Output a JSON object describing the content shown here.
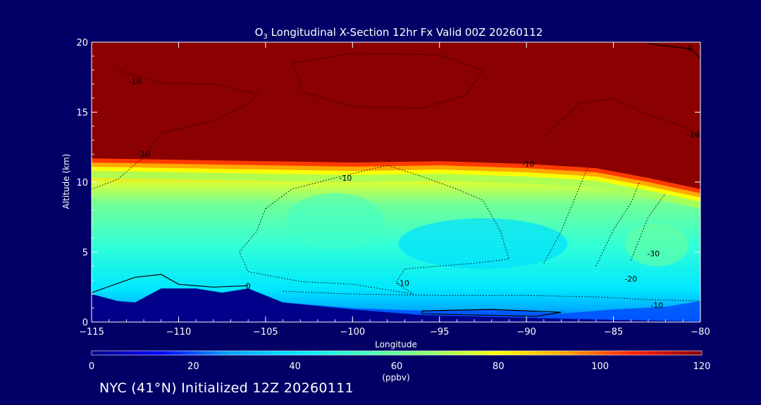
{
  "chart_data": {
    "type": "heatmap",
    "title_prefix": "O",
    "title_subscript": "3",
    "title_rest": " Longitudinal X-Section 12hr  Fx Valid 00Z 20260112",
    "xlabel": "Longitude",
    "ylabel": "Altitude (km)",
    "xlim": [
      -115,
      -80
    ],
    "ylim": [
      0,
      20
    ],
    "xticks": [
      -115,
      -110,
      -105,
      -100,
      -95,
      -90,
      -85,
      -80
    ],
    "xtick_labels": [
      "−115",
      "−110",
      "−105",
      "−100",
      "−95",
      "−90",
      "−85",
      "−80"
    ],
    "yticks": [
      0,
      5,
      10,
      15,
      20
    ],
    "ytick_labels": [
      "0",
      "5",
      "10",
      "15",
      "20"
    ],
    "colorbar": {
      "label": "(ppbv)",
      "ticks": [
        0,
        20,
        40,
        60,
        80,
        100,
        120
      ],
      "tick_labels": [
        "0",
        "20",
        "40",
        "60",
        "80",
        "100",
        "120"
      ],
      "range": [
        0,
        120
      ],
      "colors": [
        "#00008b",
        "#0000ff",
        "#00a0ff",
        "#00e5ff",
        "#40ffc0",
        "#90ff70",
        "#ffff00",
        "#ffa000",
        "#ff2000",
        "#8b0000"
      ]
    },
    "tropopause_km": [
      {
        "lon": -115,
        "alt": 11.7
      },
      {
        "lon": -105,
        "alt": 11.5
      },
      {
        "lon": -100,
        "alt": 11.4
      },
      {
        "lon": -95,
        "alt": 11.5
      },
      {
        "lon": -90,
        "alt": 11.3
      },
      {
        "lon": -86,
        "alt": 11.0
      },
      {
        "lon": -83,
        "alt": 10.3
      },
      {
        "lon": -80,
        "alt": 9.5
      }
    ],
    "terrain_km": [
      {
        "lon": -115,
        "alt": 2.0
      },
      {
        "lon": -113.5,
        "alt": 1.5
      },
      {
        "lon": -112.5,
        "alt": 1.4
      },
      {
        "lon": -111,
        "alt": 2.4
      },
      {
        "lon": -109,
        "alt": 2.4
      },
      {
        "lon": -107.5,
        "alt": 2.1
      },
      {
        "lon": -106,
        "alt": 2.4
      },
      {
        "lon": -104,
        "alt": 1.4
      },
      {
        "lon": -100,
        "alt": 0.9
      },
      {
        "lon": -96,
        "alt": 0.5
      },
      {
        "lon": -90,
        "alt": 0.3
      },
      {
        "lon": -85,
        "alt": 0.15
      },
      {
        "lon": -80,
        "alt": 0.05
      }
    ],
    "difference_contours": [
      {
        "level": "0",
        "style": "solid"
      },
      {
        "level": "-10",
        "style": "dotted"
      },
      {
        "level": "-20",
        "style": "dotted"
      },
      {
        "level": "-30",
        "style": "dotted"
      }
    ],
    "contour_labels": [
      {
        "text": "0",
        "lon": -106.0,
        "alt": 2.6
      },
      {
        "text": "0",
        "lon": -80.6,
        "alt": 19.6
      },
      {
        "text": "-10",
        "lon": -112.5,
        "alt": 17.2
      },
      {
        "text": "-10",
        "lon": -112.0,
        "alt": 12.0
      },
      {
        "text": "-10",
        "lon": -89.9,
        "alt": 11.3
      },
      {
        "text": "-10",
        "lon": -100.4,
        "alt": 10.3
      },
      {
        "text": "-10",
        "lon": -80.4,
        "alt": 13.4
      },
      {
        "text": "-10",
        "lon": -97.1,
        "alt": 2.8
      },
      {
        "text": "-10",
        "lon": -82.5,
        "alt": 1.2
      },
      {
        "text": "-20",
        "lon": -84.0,
        "alt": 3.1
      },
      {
        "text": "-30",
        "lon": -82.7,
        "alt": 4.9
      }
    ]
  },
  "footer": "NYC (41°N) Initialized 12Z 20260111"
}
